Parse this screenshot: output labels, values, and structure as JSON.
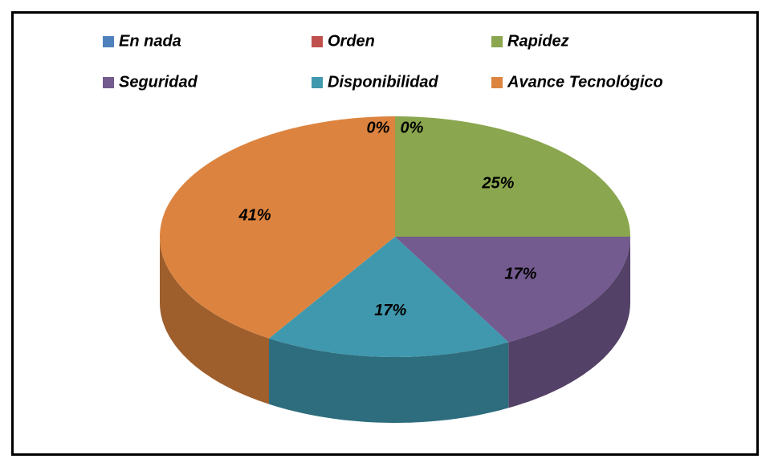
{
  "chart_data": {
    "type": "pie",
    "categories": [
      "En nada",
      "Orden",
      "Rapidez",
      "Seguridad",
      "Disponibilidad",
      "Avance Tecnológico"
    ],
    "values": [
      0,
      0,
      25,
      17,
      17,
      41
    ],
    "value_labels": [
      "0%",
      "0%",
      "25%",
      "17%",
      "17%",
      "41%"
    ],
    "colors": [
      "#4f81bd",
      "#c0504d",
      "#8aa64e",
      "#735a8f",
      "#3f98ad",
      "#dc843f"
    ],
    "legend": "top"
  }
}
